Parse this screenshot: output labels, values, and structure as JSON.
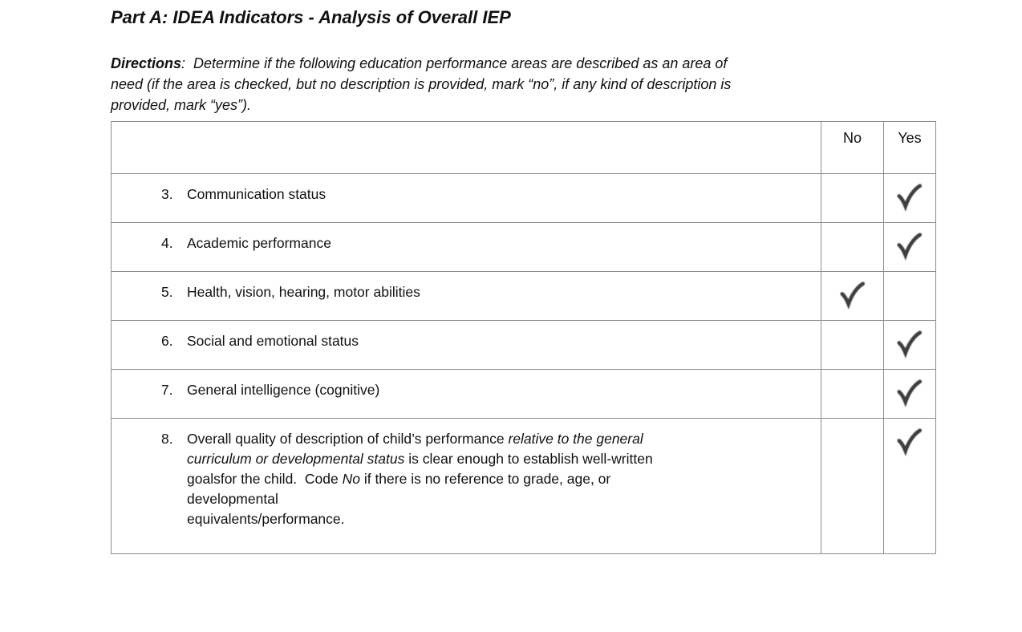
{
  "page": {
    "title": "Part A: IDEA Indicators - Analysis of Overall IEP",
    "directions_label": "Directions",
    "directions_text": ":  Determine if the following education performance areas are described as an area of\nneed (if the area is checked, but no description is provided, mark “no”, if any kind of description is\nprovided, mark “yes”)."
  },
  "table": {
    "headers": {
      "description": "",
      "no": "No",
      "yes": "Yes"
    },
    "checkmark_color": "#3d3d3d",
    "border_color": "#8c8c8c",
    "rows": [
      {
        "number": "3.",
        "segments": [
          {
            "t": "Communication status",
            "i": false
          }
        ],
        "no": false,
        "yes": true
      },
      {
        "number": "4.",
        "segments": [
          {
            "t": "Academic performance",
            "i": false
          }
        ],
        "no": false,
        "yes": true
      },
      {
        "number": "5.",
        "segments": [
          {
            "t": "Health, vision, hearing, motor abilities",
            "i": false
          }
        ],
        "no": true,
        "yes": false
      },
      {
        "number": "6.",
        "segments": [
          {
            "t": "Social and emotional status",
            "i": false
          }
        ],
        "no": false,
        "yes": true
      },
      {
        "number": "7.",
        "segments": [
          {
            "t": "General intelligence (cognitive)",
            "i": false
          }
        ],
        "no": false,
        "yes": true
      },
      {
        "number": "8.",
        "segments": [
          {
            "t": "Overall quality of description of child’s performance ",
            "i": false
          },
          {
            "t": "relative to the general\ncurriculum or developmental status",
            "i": true
          },
          {
            "t": " is clear enough to establish well-written\ngoalsfor the child.  Code ",
            "i": false
          },
          {
            "t": "No",
            "i": true
          },
          {
            "t": " if there is no reference to grade, age, or\ndevelopmental\nequivalents/performance.",
            "i": false
          }
        ],
        "no": false,
        "yes": true
      }
    ]
  }
}
